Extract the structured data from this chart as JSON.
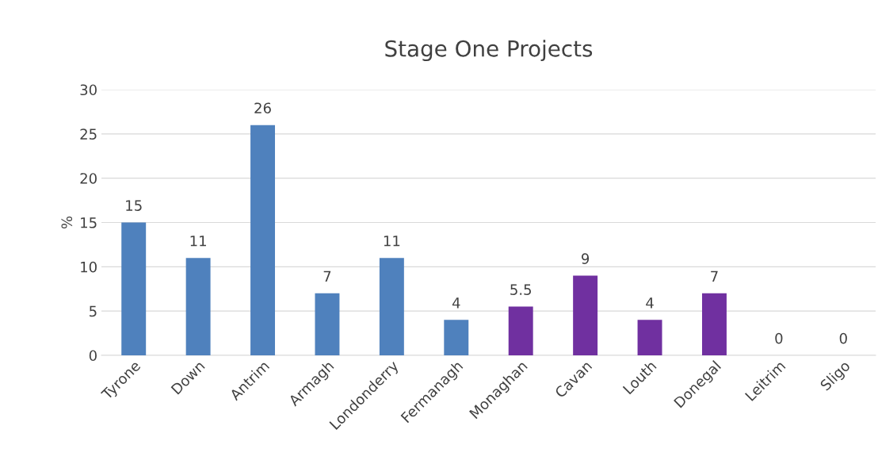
{
  "chart_data": {
    "type": "bar",
    "title": "Stage One Projects",
    "ylabel": "%",
    "categories": [
      "Tyrone",
      "Down",
      "Antrim",
      "Armagh",
      "Londonderry",
      "Fermanagh",
      "Monaghan",
      "Cavan",
      "Louth",
      "Donegal",
      "Leitrim",
      "Sligo"
    ],
    "values": [
      15,
      11,
      26,
      7,
      11,
      4,
      5.5,
      9,
      4,
      7,
      0,
      0
    ],
    "colors": [
      "#4f81bd",
      "#4f81bd",
      "#4f81bd",
      "#4f81bd",
      "#4f81bd",
      "#4f81bd",
      "#7030a0",
      "#7030a0",
      "#7030a0",
      "#7030a0",
      "#7030a0",
      "#7030a0"
    ],
    "ylim": [
      0,
      30
    ],
    "yticks": [
      0,
      5,
      10,
      15,
      20,
      25,
      30
    ],
    "grid": "y",
    "data_labels": true
  }
}
